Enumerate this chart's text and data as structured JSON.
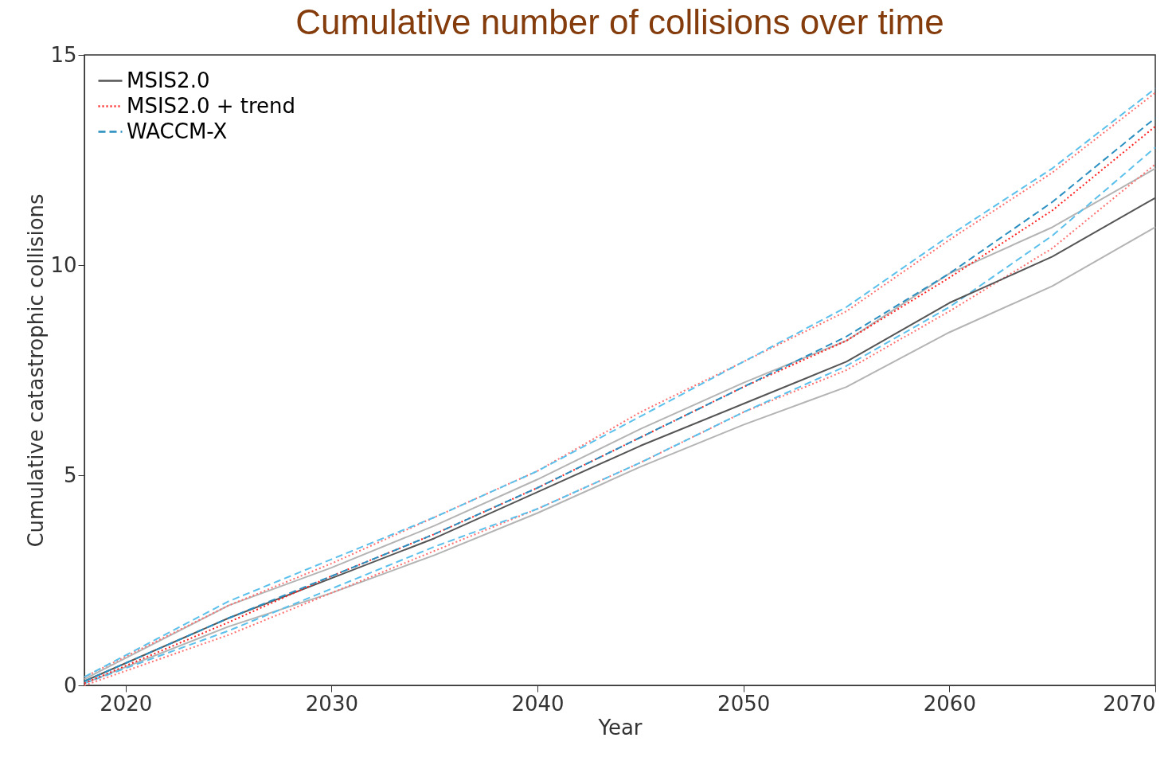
{
  "chart_data": {
    "type": "line",
    "title": "Cumulative number of collisions over time",
    "xlabel": "Year",
    "ylabel": "Cumulative catastrophic collisions",
    "x": [
      2018,
      2025,
      2030,
      2035,
      2040,
      2045,
      2050,
      2055,
      2060,
      2065,
      2070
    ],
    "series": [
      {
        "name": "MSIS2.0",
        "color": "#555555",
        "line_style": "solid",
        "values": [
          0.1,
          1.6,
          2.55,
          3.5,
          4.6,
          5.7,
          6.7,
          7.7,
          9.1,
          10.2,
          11.6
        ]
      },
      {
        "name": "MSIS2.0 + trend",
        "color": "#ff2020",
        "line_style": "dotted",
        "values": [
          0.05,
          1.5,
          2.6,
          3.6,
          4.7,
          5.9,
          7.1,
          8.2,
          9.7,
          11.3,
          13.3
        ]
      },
      {
        "name": "WACCM-X",
        "color": "#2a8fc0",
        "line_style": "dashed",
        "values": [
          0.1,
          1.6,
          2.6,
          3.6,
          4.7,
          5.9,
          7.1,
          8.3,
          9.8,
          11.5,
          13.5
        ]
      },
      {
        "color": "#b4b4b4",
        "line_style": "solid",
        "values": [
          0.05,
          1.4,
          2.2,
          3.1,
          4.1,
          5.2,
          6.2,
          7.1,
          8.4,
          9.5,
          10.9
        ]
      },
      {
        "color": "#b4b4b4",
        "line_style": "solid",
        "values": [
          0.15,
          1.9,
          2.8,
          3.8,
          4.9,
          6.1,
          7.2,
          8.2,
          9.8,
          10.9,
          12.3
        ]
      },
      {
        "color": "#ff7070",
        "line_style": "dotted",
        "values": [
          0.0,
          1.2,
          2.2,
          3.2,
          4.2,
          5.3,
          6.5,
          7.5,
          8.9,
          10.4,
          12.4
        ]
      },
      {
        "color": "#ff7070",
        "line_style": "dotted",
        "values": [
          0.2,
          1.9,
          2.9,
          4.0,
          5.1,
          6.5,
          7.7,
          8.9,
          10.6,
          12.2,
          14.1
        ]
      },
      {
        "color": "#5bc0eb",
        "line_style": "dashed",
        "values": [
          0.05,
          1.3,
          2.3,
          3.3,
          4.2,
          5.3,
          6.5,
          7.6,
          9.0,
          10.7,
          12.8
        ]
      },
      {
        "color": "#5bc0eb",
        "line_style": "dashed",
        "values": [
          0.2,
          2.0,
          3.0,
          4.0,
          5.1,
          6.4,
          7.7,
          9.0,
          10.7,
          12.3,
          14.2
        ]
      }
    ],
    "xlim": [
      2018,
      2070
    ],
    "xticks": [
      2020,
      2030,
      2040,
      2050,
      2060,
      2070
    ],
    "ylim": [
      0,
      15
    ],
    "yticks": [
      0,
      5,
      10,
      15
    ],
    "grid": false,
    "legend": "top left",
    "marker": "none"
  }
}
